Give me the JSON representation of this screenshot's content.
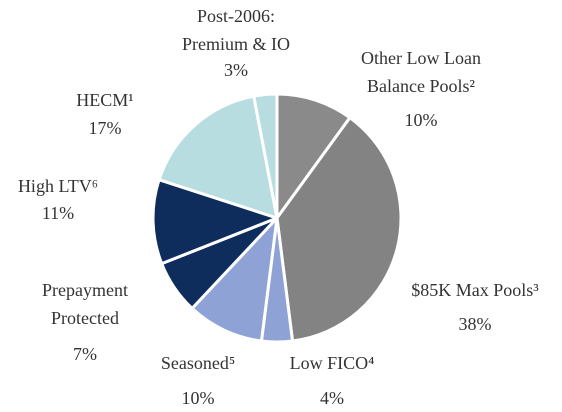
{
  "chart_data": {
    "type": "pie",
    "categories": [
      "Other Low Loan Balance Pools²",
      "$85K Max Pools³",
      "Low FICO⁴",
      "Seasoned⁵",
      "Prepayment Protected",
      "High LTV⁶",
      "HECM¹",
      "Post-2006: Premium & IO"
    ],
    "values": [
      10,
      38,
      4,
      10,
      7,
      11,
      17,
      3
    ],
    "value_labels": [
      "10%",
      "38%",
      "4%",
      "10%",
      "7%",
      "11%",
      "17%",
      "3%"
    ],
    "colors": [
      "#8a8a8a",
      "#838383",
      "#8fa2d6",
      "#8fa2d6",
      "#0f2d5c",
      "#0f2d5c",
      "#b7dde1",
      "#b7dde1"
    ]
  }
}
